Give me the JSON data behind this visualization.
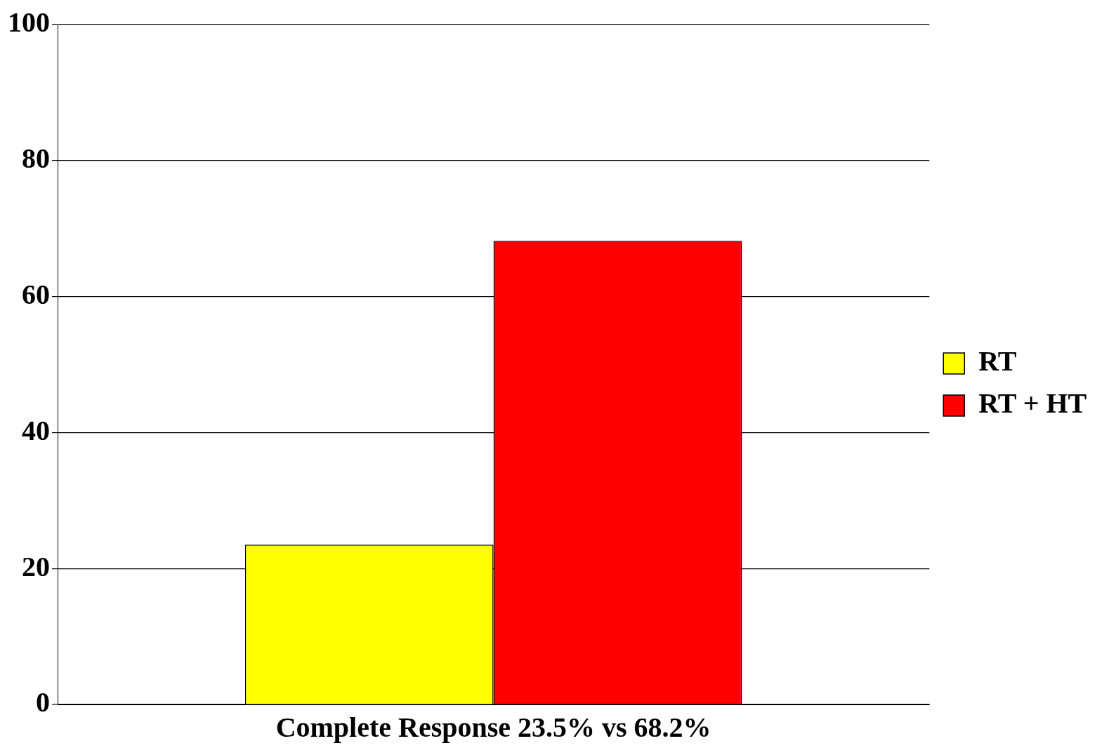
{
  "chart_data": {
    "type": "bar",
    "xlabel": "Complete Response 23.5% vs 68.2%",
    "categories": [
      null
    ],
    "series": [
      {
        "name": "RT",
        "color": "#ffff00",
        "values": [
          23.5
        ]
      },
      {
        "name": "RT + HT",
        "color": "#ff0000",
        "values": [
          68.2
        ]
      }
    ],
    "ylim": [
      0,
      100
    ],
    "yticks": [
      0,
      20,
      40,
      60,
      80,
      100
    ],
    "grid": "y",
    "legend": "right"
  }
}
